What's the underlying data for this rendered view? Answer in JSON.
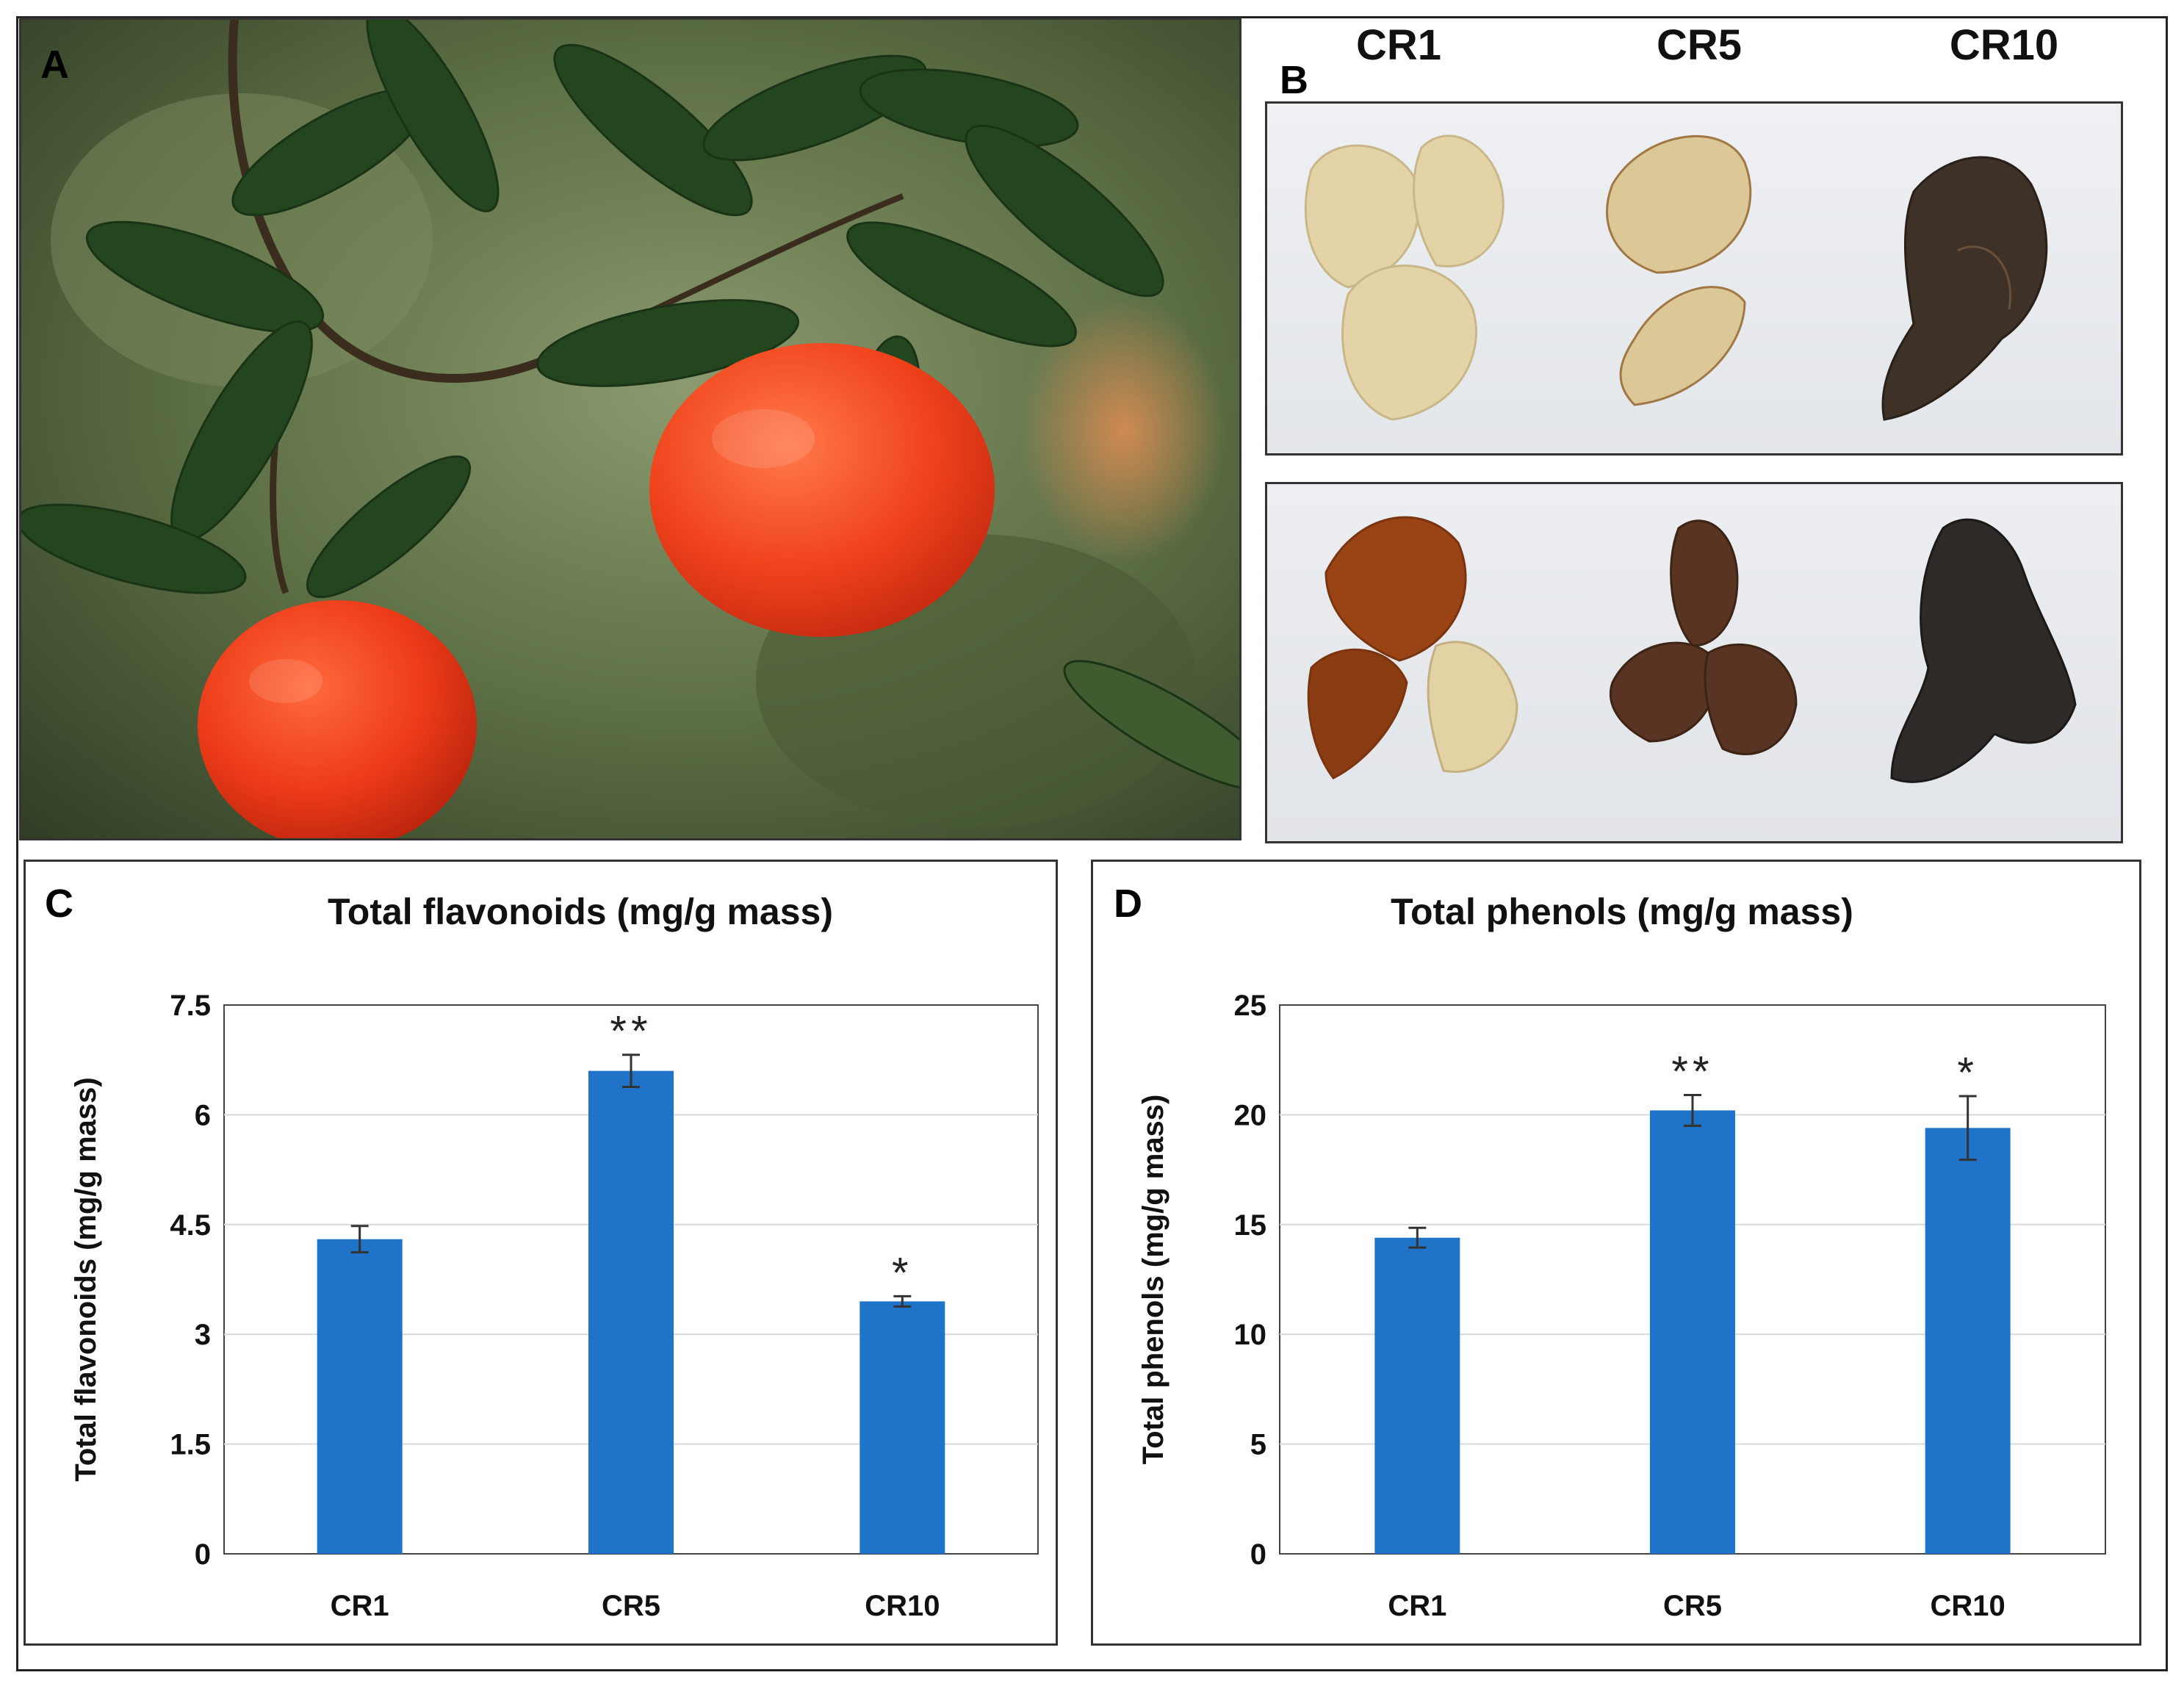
{
  "panels": {
    "a": {
      "label": "A"
    },
    "b": {
      "label": "B",
      "columns": [
        "CR1",
        "CR5",
        "CR10"
      ]
    },
    "c": {
      "label": "C"
    },
    "d": {
      "label": "D"
    }
  },
  "colors": {
    "bar": "#1f73c9",
    "grid": "#d9d9d9",
    "orange": "#f0421c",
    "leaf": "#24461f"
  },
  "chart_data": [
    {
      "type": "bar",
      "title": "Total flavonoids (mg/g mass)",
      "xlabel": "",
      "ylabel": "Total flavonoids (mg/g mass)",
      "categories": [
        "CR1",
        "CR5",
        "CR10"
      ],
      "values": [
        4.3,
        6.6,
        3.45
      ],
      "errors": [
        0.18,
        0.22,
        0.07
      ],
      "annotations": [
        "",
        "**",
        "*"
      ],
      "ylim": [
        0,
        7.5
      ],
      "yticks": [
        0,
        1.5,
        3,
        4.5,
        6,
        7.5
      ],
      "ytick_labels": [
        "0",
        "1.5",
        "3",
        "4.5",
        "6",
        "7.5"
      ],
      "grid": true
    },
    {
      "type": "bar",
      "title": "Total phenols (mg/g mass)",
      "xlabel": "",
      "ylabel": "Total phenols (mg/g mass)",
      "categories": [
        "CR1",
        "CR5",
        "CR10"
      ],
      "values": [
        14.4,
        20.2,
        19.4
      ],
      "errors": [
        0.45,
        0.7,
        1.45
      ],
      "annotations": [
        "",
        "**",
        "*"
      ],
      "ylim": [
        0,
        25
      ],
      "yticks": [
        0,
        5,
        10,
        15,
        20,
        25
      ],
      "ytick_labels": [
        "0",
        "5",
        "10",
        "15",
        "20",
        "25"
      ],
      "grid": true
    }
  ]
}
